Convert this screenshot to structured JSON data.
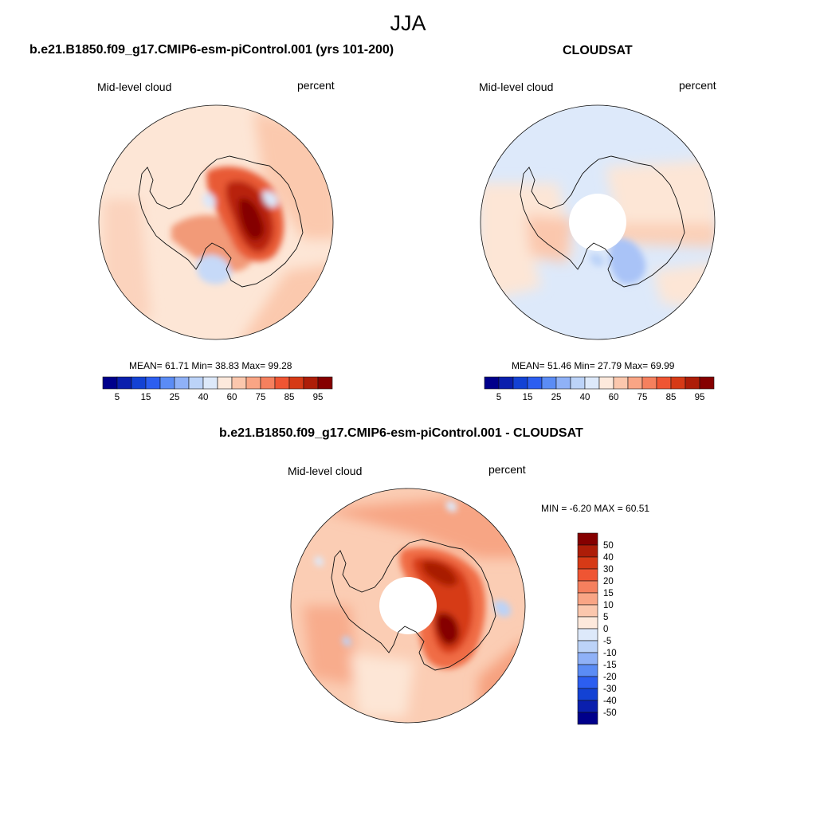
{
  "header": {
    "season": "JJA"
  },
  "colors": {
    "abs_palette": [
      "#00008b",
      "#0a1fad",
      "#1342d4",
      "#2c5ef0",
      "#5b8cf5",
      "#8fb1f7",
      "#bcd3f8",
      "#dde9fa",
      "#fde9dc",
      "#fbc7ad",
      "#f9a585",
      "#f5805e",
      "#ef5533",
      "#d63a16",
      "#ad1d08",
      "#850000"
    ],
    "diff_palette": [
      "#00008b",
      "#0a1fad",
      "#1342d4",
      "#2c5ef0",
      "#5b8cf5",
      "#8fb1f7",
      "#bcd3f8",
      "#dde9fa",
      "#fde9dc",
      "#fbc7ad",
      "#f9a585",
      "#f5805e",
      "#ef5533",
      "#d63a16",
      "#ad1d08",
      "#850000"
    ]
  },
  "panels": {
    "model": {
      "title": "b.e21.B1850.f09_g17.CMIP6-esm-piControl.001 (yrs 101-200)",
      "left_label": "Mid-level cloud",
      "right_label": "percent",
      "stats": "MEAN=  61.71  Min=  38.83  Max=  99.28",
      "colorbar_ticks": [
        "5",
        "15",
        "25",
        "40",
        "60",
        "75",
        "85",
        "95"
      ]
    },
    "obs": {
      "title": "CLOUDSAT",
      "left_label": "Mid-level cloud",
      "right_label": "percent",
      "stats": "MEAN=  51.46  Min=  27.79  Max=  69.99",
      "colorbar_ticks": [
        "5",
        "15",
        "25",
        "40",
        "60",
        "75",
        "85",
        "95"
      ]
    },
    "diff": {
      "title": "b.e21.B1850.f09_g17.CMIP6-esm-piControl.001 - CLOUDSAT",
      "left_label": "Mid-level cloud",
      "right_label": "percent",
      "stats": "MIN =  -6.20 MAX =  60.51",
      "colorbar_ticks": [
        "50",
        "40",
        "30",
        "20",
        "15",
        "10",
        "5",
        "0",
        "-5",
        "-10",
        "-15",
        "-20",
        "-30",
        "-40",
        "-50"
      ]
    }
  },
  "chart_data": [
    {
      "type": "heatmap",
      "title": "b.e21.B1850.f09_g17.CMIP6-esm-piControl.001 (yrs 101-200)",
      "variable": "Mid-level cloud",
      "units": "percent",
      "projection": "south-polar stereographic",
      "season": "JJA",
      "stats": {
        "mean": 61.71,
        "min": 38.83,
        "max": 99.28
      },
      "contour_levels": [
        5,
        10,
        15,
        20,
        25,
        30,
        40,
        50,
        60,
        70,
        75,
        80,
        85,
        90,
        95
      ],
      "colorbar_labels": [
        5,
        15,
        25,
        40,
        60,
        75,
        85,
        95
      ]
    },
    {
      "type": "heatmap",
      "title": "CLOUDSAT",
      "variable": "Mid-level cloud",
      "units": "percent",
      "projection": "south-polar stereographic",
      "season": "JJA",
      "stats": {
        "mean": 51.46,
        "min": 27.79,
        "max": 69.99
      },
      "contour_levels": [
        5,
        10,
        15,
        20,
        25,
        30,
        40,
        50,
        60,
        70,
        75,
        80,
        85,
        90,
        95
      ],
      "colorbar_labels": [
        5,
        15,
        25,
        40,
        60,
        75,
        85,
        95
      ]
    },
    {
      "type": "heatmap",
      "title": "b.e21.B1850.f09_g17.CMIP6-esm-piControl.001 - CLOUDSAT",
      "variable": "Mid-level cloud",
      "units": "percent",
      "projection": "south-polar stereographic",
      "season": "JJA",
      "stats": {
        "min": -6.2,
        "max": 60.51
      },
      "contour_levels": [
        -50,
        -40,
        -30,
        -20,
        -15,
        -10,
        -5,
        0,
        5,
        10,
        15,
        20,
        30,
        40,
        50
      ],
      "colorbar_labels": [
        50,
        40,
        30,
        20,
        15,
        10,
        5,
        0,
        -5,
        -10,
        -15,
        -20,
        -30,
        -40,
        -50
      ]
    }
  ]
}
